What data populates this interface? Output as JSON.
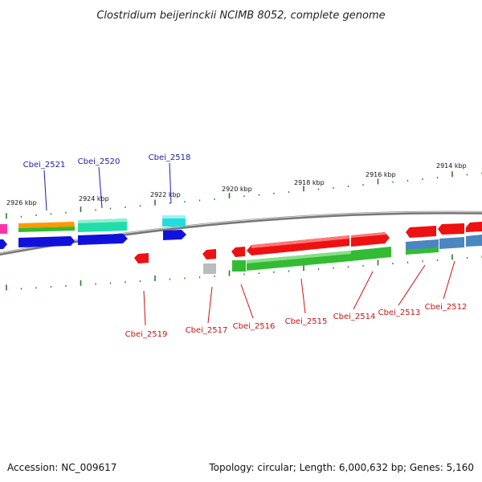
{
  "title": "Clostridium beijerinckii NCIMB 8052, complete genome",
  "accession": "Accession: NC_009617",
  "summary": "Topology: circular; Length: 6,000,632 bp; Genes: 5,160",
  "kbp_labels": [
    "2926 kbp",
    "2924 kbp",
    "2922 kbp",
    "2920 kbp",
    "2918 kbp",
    "2916 kbp",
    "2914 kbp"
  ],
  "gene_labels_top": [
    "Cbei_2521",
    "Cbei_2520",
    "Cbei_2518"
  ],
  "gene_labels_bottom": [
    "Cbei_2519",
    "Cbei_2517",
    "Cbei_2516",
    "Cbei_2515",
    "Cbei_2514",
    "Cbei_2513",
    "Cbei_2512"
  ],
  "colors": {
    "backbone": "#888888",
    "tick": "#2a7a2a",
    "label_blue": "#1a1ab0",
    "label_red": "#cc1111",
    "gene_red": "#ee1111",
    "gene_green": "#33bb33",
    "gene_blue": "#1111dd",
    "gene_teal": "#22ddaa",
    "gene_orange": "#ff9900",
    "gene_cyan": "#22dddd",
    "gene_magenta": "#ff33aa",
    "gene_steelblue": "#4a86c0",
    "gene_gray": "#bbbbbb"
  }
}
